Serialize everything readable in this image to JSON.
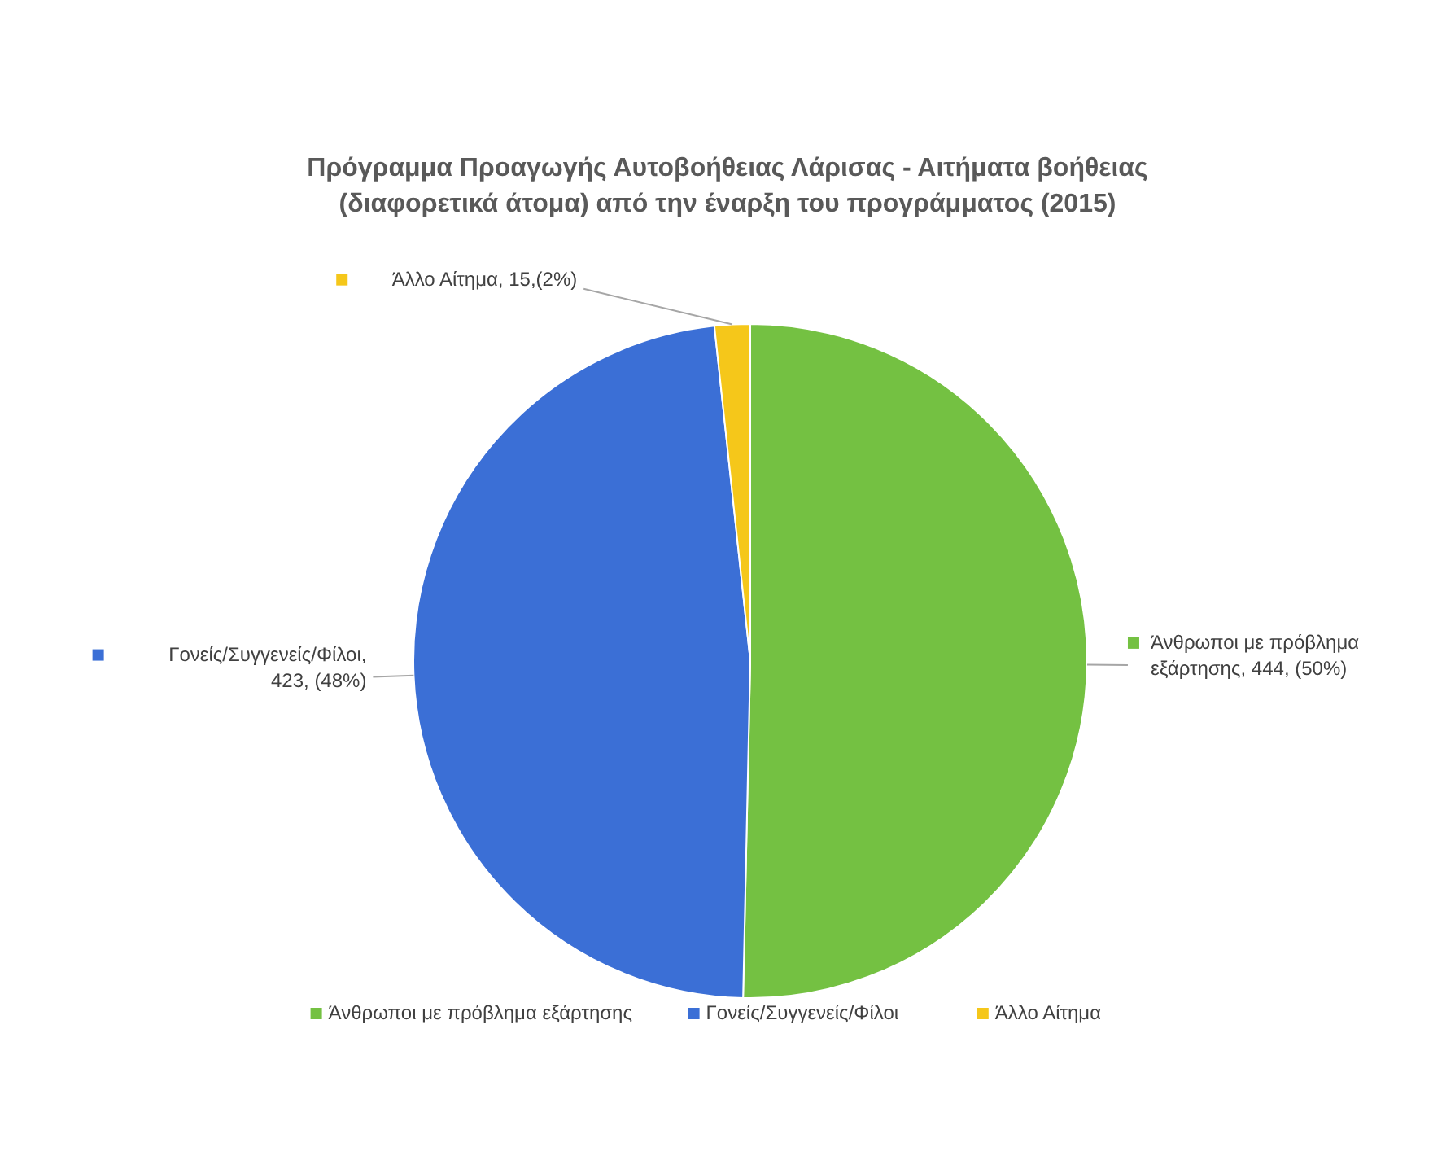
{
  "chart_data": {
    "type": "pie",
    "title": "Πρόγραμμα Προαγωγής Αυτοβοήθειας Λάρισας - Αιτήματα βοήθειας (διαφορετικά άτομα) από την έναρξη του προγράμματος (2015)",
    "categories": [
      "Άνθρωποι με πρόβλημα εξάρτησης",
      "Γονείς/Συγγενείς/Φίλοι",
      "Άλλο Αίτημα"
    ],
    "values": [
      444,
      423,
      15
    ],
    "colors": [
      "#74c142",
      "#3b6fd6",
      "#f5c71a"
    ],
    "value_labels": [
      "Άνθρωποι με πρόβλημα εξάρτησης, 444, (50%)",
      "Γονείς/Συγγενείς/Φίλοι, 423, (48%)",
      "Άλλο Αίτημα, 15,(2%)"
    ],
    "legend": "bottom"
  }
}
